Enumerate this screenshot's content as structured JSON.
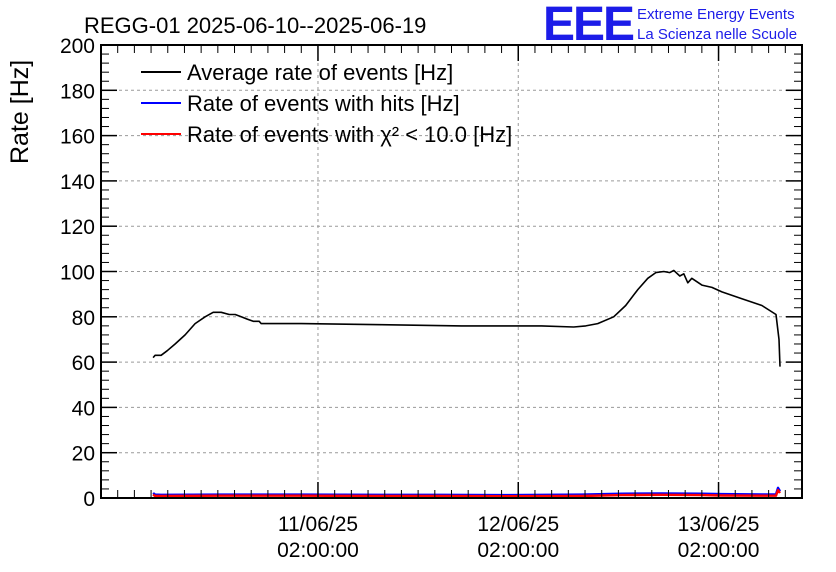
{
  "logo": {
    "mark": "EEE",
    "line1": "Extreme Energy Events",
    "line2": "La Scienza nelle Scuole",
    "color": "#1c1ce8"
  },
  "chart_data": {
    "type": "line",
    "title": "REGG-01 2025-06-10--2025-06-19",
    "xlabel": "",
    "ylabel": "Rate [Hz]",
    "x_unit": "days since 2025-06-10 00:00",
    "xlim": [
      0.0,
      3.5
    ],
    "ylim": [
      0,
      200
    ],
    "yticks": [
      0,
      20,
      40,
      60,
      80,
      100,
      120,
      140,
      160,
      180,
      200
    ],
    "xticks": [
      {
        "x": 1.0833,
        "line1": "11/06/25",
        "line2": "02:00:00"
      },
      {
        "x": 2.0833,
        "line1": "12/06/25",
        "line2": "02:00:00"
      },
      {
        "x": 3.0833,
        "line1": "13/06/25",
        "line2": "02:00:00"
      }
    ],
    "grid": true,
    "legend_position": "top-left",
    "series": [
      {
        "name": "Average rate of events [Hz]",
        "color": "#000000",
        "x": [
          0.26,
          0.27,
          0.3,
          0.33,
          0.37,
          0.42,
          0.47,
          0.52,
          0.56,
          0.6,
          0.64,
          0.67,
          0.7,
          0.73,
          0.76,
          0.79,
          0.8,
          0.82,
          1.0,
          1.4,
          1.8,
          2.2,
          2.36,
          2.42,
          2.48,
          2.56,
          2.62,
          2.68,
          2.73,
          2.77,
          2.81,
          2.84,
          2.86,
          2.89,
          2.91,
          2.93,
          2.95,
          3.0,
          3.05,
          3.1,
          3.2,
          3.3,
          3.37,
          3.385,
          3.39
        ],
        "values": [
          62,
          63,
          63,
          65,
          68,
          72,
          77,
          80,
          82,
          82,
          81,
          81,
          80,
          79,
          78,
          78,
          77,
          77,
          77,
          76.5,
          76,
          76,
          75.5,
          76,
          77,
          80,
          85,
          92,
          97,
          99.5,
          100,
          99.5,
          100.5,
          98,
          99,
          95,
          97,
          94,
          93,
          91,
          88,
          85,
          81,
          70,
          58
        ]
      },
      {
        "name": "Rate of events with hits [Hz]",
        "color": "#0000ff",
        "x": [
          0.26,
          0.27,
          0.3,
          0.6,
          1.0,
          1.4,
          1.7,
          2.0,
          2.4,
          2.6,
          2.8,
          3.0,
          3.1,
          3.3,
          3.37,
          3.38,
          3.39
        ],
        "values": [
          2.2,
          1.5,
          1.4,
          1.5,
          1.5,
          1.4,
          1.4,
          1.3,
          1.5,
          1.9,
          2.0,
          1.9,
          1.7,
          1.6,
          1.6,
          4.5,
          3.0
        ]
      },
      {
        "name": "Rate of events with χ² < 10.0 [Hz]",
        "color": "#ff0000",
        "x": [
          0.26,
          0.27,
          0.3,
          0.6,
          1.0,
          1.4,
          1.7,
          2.0,
          2.4,
          2.6,
          2.8,
          3.0,
          3.1,
          3.3,
          3.37,
          3.38,
          3.39
        ],
        "values": [
          1.5,
          0.9,
          0.9,
          1.0,
          1.0,
          0.9,
          0.9,
          0.8,
          0.9,
          1.3,
          1.4,
          1.3,
          1.1,
          1.0,
          1.0,
          3.5,
          2.2
        ]
      }
    ]
  }
}
